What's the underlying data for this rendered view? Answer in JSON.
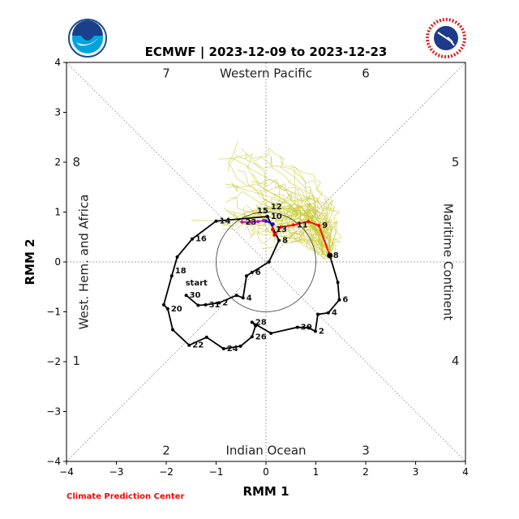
{
  "chart_data": {
    "type": "line",
    "title": "ECMWF | 2023-12-09 to 2023-12-23",
    "xlabel": "RMM 1",
    "ylabel": "RMM 2",
    "xlim": [
      -4,
      4
    ],
    "ylim": [
      -4,
      4
    ],
    "xticks": [
      "−4",
      "−3",
      "−2",
      "−1",
      "0",
      "1",
      "2",
      "3",
      "4"
    ],
    "yticks": [
      "−4",
      "−3",
      "−2",
      "−1",
      "0",
      "1",
      "2",
      "3",
      "4"
    ],
    "phases": [
      {
        "label": "1",
        "pos": [
          -3.8,
          -1.98
        ]
      },
      {
        "label": "2",
        "pos": [
          -2.0,
          -3.78
        ]
      },
      {
        "label": "3",
        "pos": [
          2.0,
          -3.78
        ]
      },
      {
        "label": "4",
        "pos": [
          3.8,
          -1.98
        ]
      },
      {
        "label": "5",
        "pos": [
          3.8,
          2.0
        ]
      },
      {
        "label": "6",
        "pos": [
          2.0,
          3.78
        ]
      },
      {
        "label": "7",
        "pos": [
          -2.0,
          3.78
        ]
      },
      {
        "label": "8",
        "pos": [
          -3.8,
          2.0
        ]
      }
    ],
    "regions": {
      "top": "Western Pacific",
      "bottom": "Indian Ocean",
      "left": "West. Hem. and Africa",
      "right": "Maritime Continent"
    },
    "circle_radius": 1,
    "series": [
      {
        "name": "observed",
        "color": "#000000",
        "x": [
          -1.6,
          -1.36,
          -1.21,
          -0.94,
          -0.59,
          -0.46,
          -0.39,
          -0.28,
          0.06,
          0.26,
          0.03,
          -1.0,
          -1.48,
          -1.78,
          -1.89,
          -2.05,
          -1.97,
          -1.87,
          -1.54,
          -1.19,
          -0.85,
          -0.51,
          -0.28,
          -0.21,
          -0.28,
          0.1,
          0.63,
          0.85,
          0.99,
          1.04,
          1.25,
          1.47,
          1.44,
          1.28
        ],
        "y": [
          -0.67,
          -0.87,
          -0.86,
          -0.82,
          -0.67,
          -0.72,
          -0.28,
          -0.21,
          0.0,
          0.43,
          0.91,
          0.82,
          0.46,
          0.1,
          -0.28,
          -0.86,
          -0.94,
          -1.36,
          -1.67,
          -1.51,
          -1.74,
          -1.69,
          -1.5,
          -1.28,
          -1.21,
          -1.43,
          -1.31,
          -1.32,
          -1.39,
          -1.05,
          -1.02,
          -0.76,
          -0.41,
          0.13
        ],
        "labels": [
          {
            "i": 0,
            "t": "30"
          },
          {
            "i": 2,
            "t": "31"
          },
          {
            "i": 3,
            "t": "2"
          },
          {
            "i": 5,
            "t": "4"
          },
          {
            "i": 7,
            "t": "6"
          },
          {
            "i": 9,
            "t": "8"
          },
          {
            "i": 10,
            "t": "10"
          },
          {
            "i": 10,
            "t": "12"
          },
          {
            "i": 11,
            "t": "14"
          },
          {
            "i": 12,
            "t": "16"
          },
          {
            "i": 14,
            "t": "18"
          },
          {
            "i": 16,
            "t": "20"
          },
          {
            "i": 18,
            "t": "22"
          },
          {
            "i": 20,
            "t": "24"
          },
          {
            "i": 22,
            "t": "26"
          },
          {
            "i": 24,
            "t": "28"
          },
          {
            "i": 26,
            "t": "30"
          },
          {
            "i": 28,
            "t": "2"
          },
          {
            "i": 30,
            "t": "4"
          },
          {
            "i": 31,
            "t": "6"
          },
          {
            "i": 33,
            "t": "8"
          }
        ]
      },
      {
        "name": "forecast-week1",
        "color": "#ff0000",
        "x": [
          1.28,
          1.06,
          0.85,
          0.55,
          0.3,
          0.17,
          0.13,
          0.14
        ],
        "y": [
          0.13,
          0.73,
          0.81,
          0.74,
          0.7,
          0.54,
          0.65,
          0.76
        ],
        "labels": [
          {
            "i": 1,
            "t": "9"
          },
          {
            "i": 3,
            "t": "11"
          },
          {
            "i": 6,
            "t": "13"
          }
        ]
      },
      {
        "name": "forecast-week2",
        "color": "#0000ff",
        "x": [
          0.14,
          0.0,
          -0.05
        ],
        "y": [
          0.76,
          0.82,
          0.83
        ],
        "labels": [
          {
            "i": 2,
            "t": "15"
          }
        ]
      },
      {
        "name": "forecast-week3",
        "color": "#cc00cc",
        "x": [
          -0.05,
          -0.16,
          -0.29,
          -0.48
        ],
        "y": [
          0.83,
          0.81,
          0.8,
          0.8
        ],
        "labels": [
          {
            "i": 3,
            "t": "23"
          }
        ]
      }
    ],
    "start_label": "start",
    "ensemble_color": "#c8c832"
  },
  "footer": {
    "credit": "Climate Prediction Center",
    "credit_color": "#ff0000"
  },
  "logos": {
    "left": "NOAA",
    "right": "NATIONAL WEATHER SERVICE"
  }
}
